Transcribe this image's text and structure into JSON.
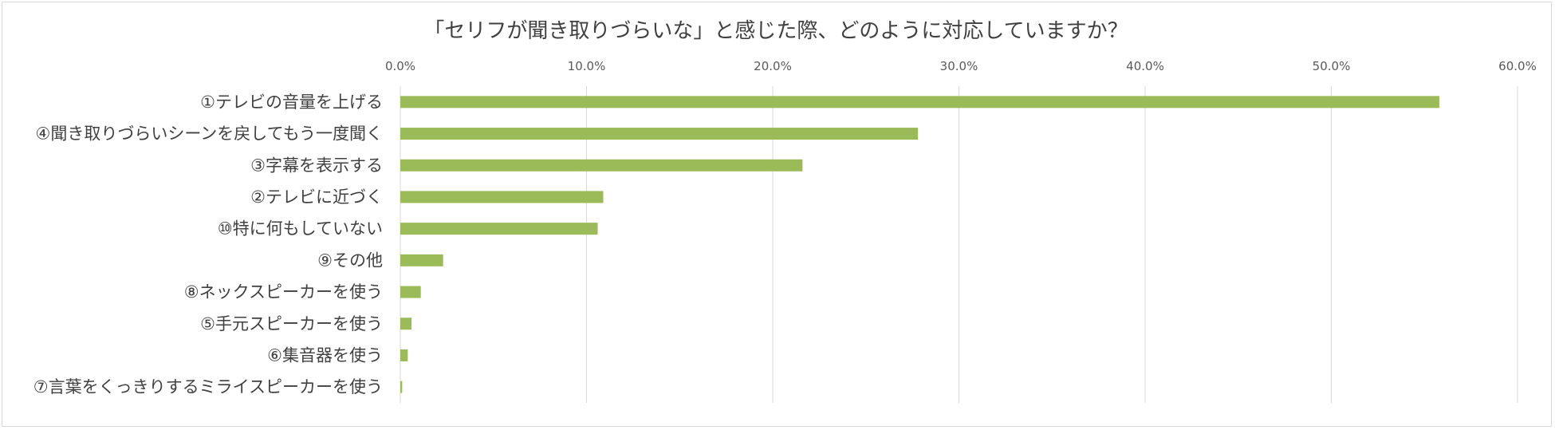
{
  "chart_data": {
    "type": "bar",
    "orientation": "horizontal",
    "title": "「セリフが聞き取りづらいな」と感じた際、どのように対応していますか？",
    "xlabel": "",
    "ylabel": "",
    "xlim": [
      0,
      60
    ],
    "tick_labels": [
      "0.0%",
      "10.0%",
      "20.0%",
      "30.0%",
      "40.0%",
      "50.0%",
      "60.0%"
    ],
    "categories": [
      "①テレビの音量を上げる",
      "④聞き取りづらいシーンを戻してもう一度聞く",
      "③字幕を表示する",
      "②テレビに近づく",
      "⑩特に何もしていない",
      "⑨その他",
      "⑧ネックスピーカーを使う",
      "⑤手元スピーカーを使う",
      "⑥集音器を使う",
      "⑦言葉をくっきりするミライスピーカーを使う"
    ],
    "values": [
      55.8,
      27.8,
      21.6,
      10.9,
      10.6,
      2.3,
      1.1,
      0.6,
      0.4,
      0.1
    ],
    "bar_color": "#9bbb59",
    "grid": true,
    "legend": "none"
  }
}
